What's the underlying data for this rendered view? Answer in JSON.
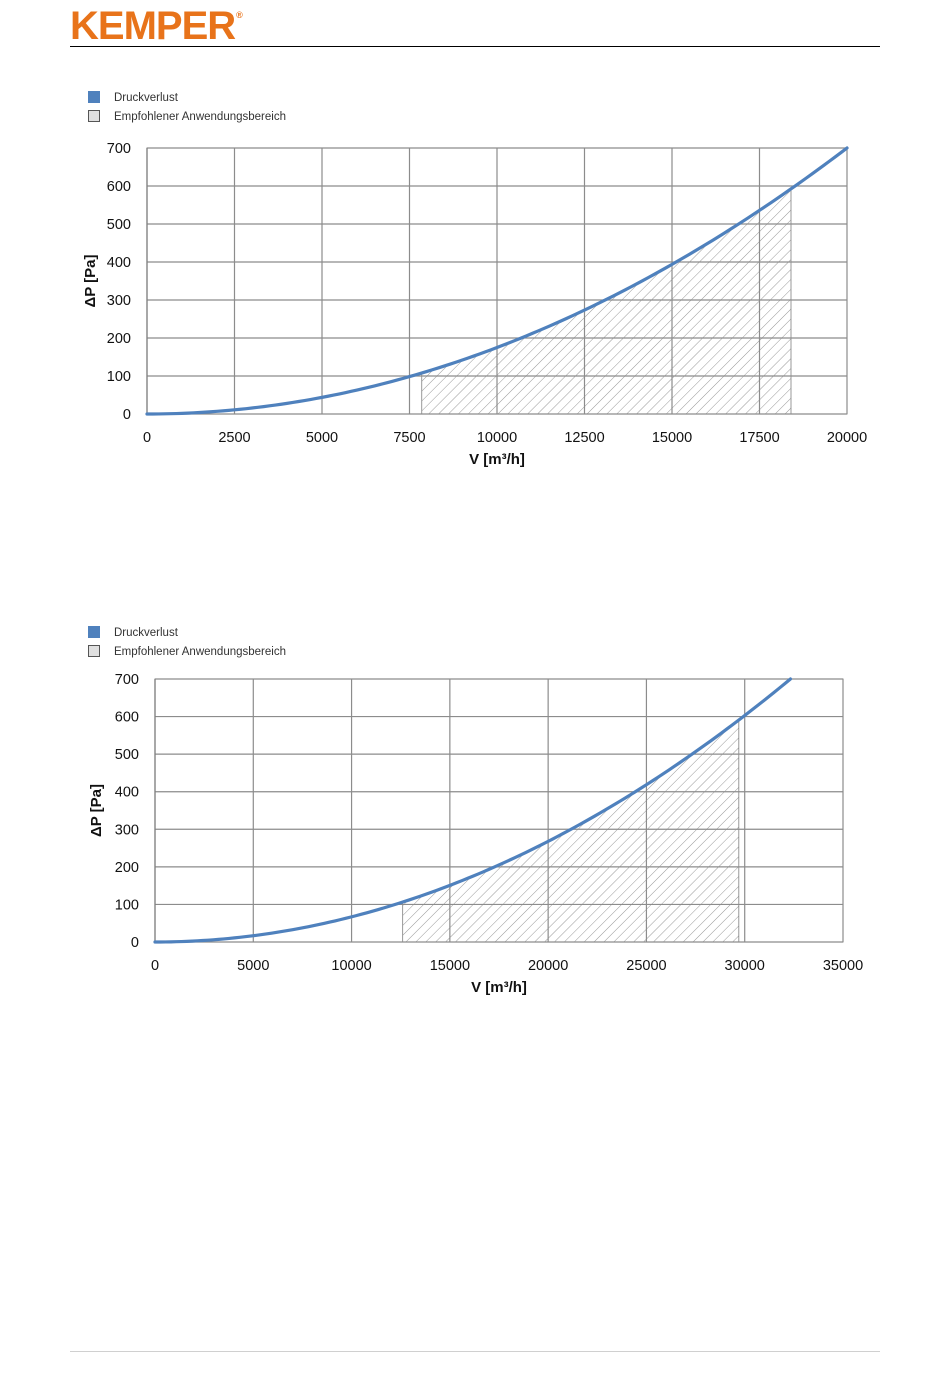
{
  "header": {
    "logo_text": "KEMPER",
    "logo_mark": "®",
    "brand_color": "#E8731A"
  },
  "colors": {
    "curve": "#4F81BD",
    "grid": "#8C8C8C",
    "hatch": "#7F7F7F"
  },
  "chart_data": [
    {
      "type": "line",
      "legend": [
        "Druckverlust",
        "Empfohlener Anwendungsbereich"
      ],
      "legend_placement": "top-left",
      "xlabel": "V [m³/h]",
      "ylabel": "ΔP [Pa]",
      "xlim": [
        0,
        20000
      ],
      "ylim": [
        0,
        700
      ],
      "xticks": [
        0,
        2500,
        5000,
        7500,
        10000,
        12500,
        15000,
        17500,
        20000
      ],
      "yticks": [
        0,
        100,
        200,
        300,
        400,
        500,
        600,
        700
      ],
      "grid": true,
      "series": [
        {
          "name": "Druckverlust",
          "x": [
            0,
            2500,
            5000,
            7500,
            10000,
            12500,
            15000,
            17500,
            20000
          ],
          "y": [
            0,
            11,
            44,
            98,
            175,
            273,
            394,
            536,
            700
          ]
        }
      ],
      "range": {
        "name": "Empfohlener Anwendungsbereich",
        "x_start": 7850,
        "x_end": 18400
      }
    },
    {
      "type": "line",
      "legend": [
        "Druckverlust",
        "Empfohlener Anwendungsbereich"
      ],
      "legend_placement": "top-left",
      "xlabel": "V [m³/h]",
      "ylabel": "ΔP [Pa]",
      "xlim": [
        0,
        35000
      ],
      "ylim": [
        0,
        700
      ],
      "xticks": [
        0,
        5000,
        10000,
        15000,
        20000,
        25000,
        30000,
        35000
      ],
      "yticks": [
        0,
        100,
        200,
        300,
        400,
        500,
        600,
        700
      ],
      "grid": true,
      "series": [
        {
          "name": "Druckverlust",
          "x": [
            0,
            5000,
            10000,
            15000,
            20000,
            25000,
            30000,
            32000
          ],
          "y": [
            0,
            17,
            66,
            148,
            264,
            412,
            594,
            700
          ]
        }
      ],
      "range": {
        "name": "Empfohlener Anwendungsbereich",
        "x_start": 12600,
        "x_end": 29700
      }
    }
  ]
}
